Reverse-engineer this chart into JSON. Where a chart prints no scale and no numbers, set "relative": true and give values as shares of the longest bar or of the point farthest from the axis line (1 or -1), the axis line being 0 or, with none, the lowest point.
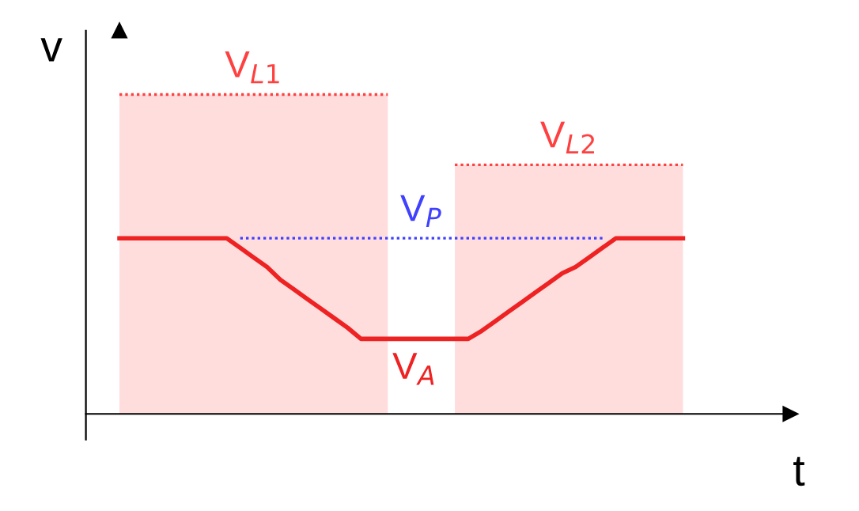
{
  "chart_data": {
    "type": "line",
    "relative": true,
    "xlabel": "t",
    "ylabel": "v",
    "legend": false,
    "categories": [
      null,
      null,
      null,
      null,
      null,
      null,
      null,
      null,
      null,
      null,
      null,
      null,
      null,
      null,
      null,
      null,
      null,
      null,
      null,
      null,
      null,
      null,
      null,
      null,
      null,
      null,
      null,
      null,
      null,
      null,
      null,
      null,
      null,
      null,
      null,
      null,
      null,
      null,
      null,
      null,
      null,
      null,
      null
    ],
    "series": [
      {
        "type": "area",
        "name": "V$_{L1}$",
        "color": "#ff4040",
        "line_style": "dotted",
        "values": [
          1,
          1,
          1,
          1,
          1,
          1,
          1,
          1,
          1,
          1,
          1,
          1,
          1,
          1,
          1,
          1,
          1,
          1,
          1,
          1,
          1,
          null,
          null,
          null,
          null,
          null,
          null,
          null,
          null,
          null,
          null,
          null,
          null,
          null,
          null,
          null,
          null,
          null,
          null,
          null,
          null,
          null,
          null
        ]
      },
      {
        "type": "area",
        "name": "V$_{L2}$",
        "color": "#ff4040",
        "line_style": "dotted",
        "values": [
          null,
          null,
          null,
          null,
          null,
          null,
          null,
          null,
          null,
          null,
          null,
          null,
          null,
          null,
          null,
          null,
          null,
          null,
          null,
          null,
          null,
          null,
          null,
          null,
          null,
          0.78,
          0.78,
          0.78,
          0.78,
          0.78,
          0.78,
          0.78,
          0.78,
          0.78,
          0.78,
          0.78,
          0.78,
          0.78,
          0.78,
          0.78,
          0.78,
          0.78,
          0.78
        ]
      },
      {
        "name": "V$_{P}$",
        "color": "#4040ff",
        "line_style": "dotted",
        "values": [
          null,
          null,
          null,
          null,
          null,
          null,
          null,
          null,
          null,
          0.55,
          0.55,
          0.55,
          0.55,
          0.55,
          0.55,
          0.55,
          0.55,
          0.55,
          0.55,
          0.55,
          0.55,
          0.55,
          0.55,
          0.55,
          0.55,
          0.55,
          0.55,
          0.55,
          0.55,
          0.55,
          0.55,
          0.55,
          0.55,
          0.55,
          0.55,
          0.55,
          0.55,
          null,
          null,
          null,
          null,
          null,
          null
        ]
      },
      {
        "name": "V$_{A}$",
        "color": "#ee2222",
        "line_style": "solid",
        "values": [
          0.55,
          0.55,
          0.55,
          0.55,
          0.55,
          0.55,
          0.55,
          0.55,
          0.55,
          0.52,
          0.49,
          0.46,
          0.42,
          0.39,
          0.36,
          0.33,
          0.3,
          0.27,
          0.235,
          0.235,
          0.235,
          0.235,
          0.235,
          0.235,
          0.235,
          0.235,
          0.235,
          0.26,
          0.29,
          0.32,
          0.35,
          0.38,
          0.41,
          0.44,
          0.46,
          0.49,
          0.52,
          0.55,
          0.55,
          0.55,
          0.55,
          0.55,
          0.55
        ]
      }
    ]
  }
}
